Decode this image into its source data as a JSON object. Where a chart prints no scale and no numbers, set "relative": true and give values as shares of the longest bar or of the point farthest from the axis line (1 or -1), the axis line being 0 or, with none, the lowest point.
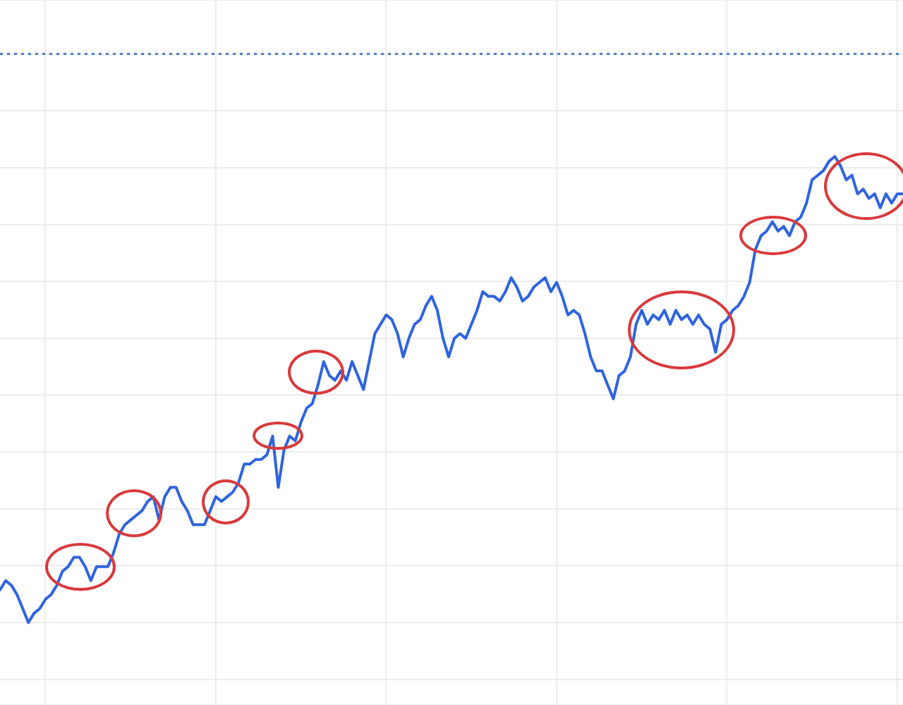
{
  "chart_data": {
    "type": "line",
    "relative": true,
    "grid": true,
    "legend": false,
    "tick_labels": false,
    "marker": "none",
    "line_style": "solid",
    "categories": [
      null,
      null,
      null,
      null,
      null,
      null,
      null,
      null,
      null,
      null,
      null,
      null,
      null,
      null,
      null,
      null,
      null,
      null,
      null,
      null,
      null,
      null,
      null,
      null,
      null,
      null,
      null,
      null,
      null,
      null,
      null,
      null,
      null,
      null,
      null,
      null,
      null,
      null,
      null,
      null,
      null,
      null,
      null,
      null,
      null,
      null,
      null,
      null,
      null,
      null,
      null,
      null,
      null,
      null,
      null,
      null,
      null,
      null,
      null,
      null,
      null,
      null,
      null,
      null,
      null,
      null,
      null,
      null,
      null,
      null,
      null,
      null,
      null,
      null,
      null,
      null,
      null,
      null,
      null,
      null,
      null,
      null,
      null,
      null,
      null,
      null,
      null,
      null,
      null,
      null,
      null,
      null,
      null,
      null,
      null,
      null,
      null,
      null,
      null,
      null,
      null,
      null,
      null,
      null,
      null,
      null,
      null,
      null,
      null,
      null,
      null,
      null,
      null,
      null,
      null,
      null,
      null,
      null,
      null,
      null,
      null,
      null,
      null,
      null,
      null,
      null,
      null,
      null,
      null,
      null,
      null,
      null,
      null,
      null,
      null,
      null,
      null,
      null,
      null,
      null,
      null,
      null,
      null,
      null,
      null,
      null,
      null,
      null,
      null,
      null,
      null,
      null,
      null,
      null,
      null,
      null,
      null,
      null,
      null,
      null
    ],
    "series": [
      {
        "color": "#2f64e0",
        "values": [
          0.07,
          0.09,
          0.08,
          0.06,
          0.03,
          0,
          0.02,
          0.03,
          0.05,
          0.06,
          0.08,
          0.11,
          0.12,
          0.14,
          0.14,
          0.12,
          0.09,
          0.12,
          0.12,
          0.12,
          0.15,
          0.19,
          0.21,
          0.22,
          0.23,
          0.24,
          0.26,
          0.27,
          0.22,
          0.27,
          0.29,
          0.29,
          0.26,
          0.24,
          0.21,
          0.21,
          0.21,
          0.24,
          0.27,
          0.26,
          0.27,
          0.28,
          0.3,
          0.34,
          0.34,
          0.35,
          0.35,
          0.36,
          0.4,
          0.29,
          0.37,
          0.4,
          0.39,
          0.43,
          0.46,
          0.47,
          0.51,
          0.56,
          0.53,
          0.52,
          0.54,
          0.52,
          0.56,
          0.53,
          0.5,
          0.56,
          0.62,
          0.64,
          0.66,
          0.65,
          0.62,
          0.57,
          0.61,
          0.64,
          0.65,
          0.68,
          0.7,
          0.67,
          0.61,
          0.57,
          0.61,
          0.62,
          0.61,
          0.64,
          0.67,
          0.71,
          0.7,
          0.7,
          0.69,
          0.71,
          0.74,
          0.72,
          0.69,
          0.7,
          0.72,
          0.73,
          0.74,
          0.71,
          0.73,
          0.7,
          0.66,
          0.67,
          0.66,
          0.62,
          0.57,
          0.54,
          0.54,
          0.51,
          0.48,
          0.53,
          0.54,
          0.57,
          0.64,
          0.67,
          0.64,
          0.66,
          0.65,
          0.67,
          0.64,
          0.67,
          0.65,
          0.66,
          0.64,
          0.66,
          0.64,
          0.63,
          0.58,
          0.64,
          0.65,
          0.67,
          0.68,
          0.7,
          0.73,
          0.8,
          0.83,
          0.84,
          0.86,
          0.84,
          0.85,
          0.83,
          0.86,
          0.87,
          0.9,
          0.95,
          0.96,
          0.97,
          0.99,
          1,
          0.98,
          0.95,
          0.96,
          0.92,
          0.93,
          0.91,
          0.92,
          0.89,
          0.92,
          0.9,
          0.92,
          0.92
        ]
      }
    ],
    "ref_lines": [
      {
        "axis": "y",
        "value": 1.22,
        "color": "#4f7fc9",
        "line_style": "dotted"
      }
    ]
  }
}
